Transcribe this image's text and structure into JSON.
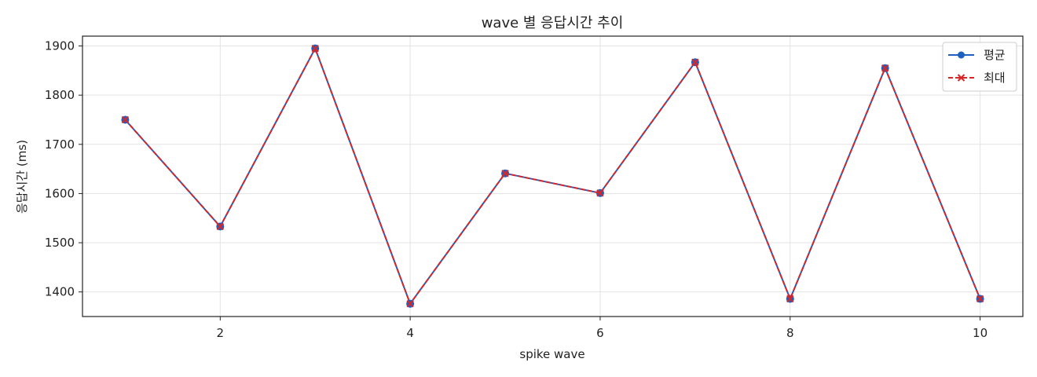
{
  "chart_data": {
    "type": "line",
    "title": "wave 별 응답시간 추이",
    "xlabel": "spike wave",
    "ylabel": "응답시간 (ms)",
    "x": [
      1,
      2,
      3,
      4,
      5,
      6,
      7,
      8,
      9,
      10
    ],
    "xlim": [
      0.55,
      10.45
    ],
    "ylim": [
      1350,
      1920
    ],
    "xticks": [
      2,
      4,
      6,
      8,
      10
    ],
    "yticks": [
      1400,
      1500,
      1600,
      1700,
      1800,
      1900
    ],
    "grid": true,
    "legend_position": "top-right",
    "series": [
      {
        "name": "평균",
        "values": [
          1750,
          1533,
          1895,
          1376,
          1641,
          1601,
          1867,
          1386,
          1855,
          1386
        ],
        "color": "#1f5fbf",
        "marker": "circle",
        "linestyle": "solid"
      },
      {
        "name": "최대",
        "values": [
          1750,
          1533,
          1895,
          1376,
          1641,
          1601,
          1867,
          1386,
          1855,
          1386
        ],
        "color": "#d62728",
        "marker": "x",
        "linestyle": "dashed"
      }
    ]
  }
}
